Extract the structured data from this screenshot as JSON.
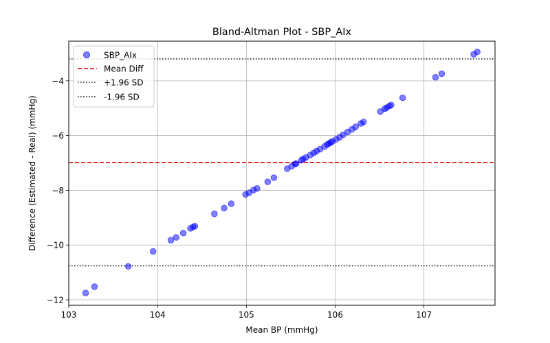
{
  "chart_data": {
    "type": "scatter",
    "title": "Bland-Altman Plot - SBP_AIx",
    "xlabel": "Mean BP (mmHg)",
    "ylabel": "Difference (Estimated - Real) (mmHg)",
    "xlim": [
      103.0,
      107.8
    ],
    "ylim": [
      -12.2,
      -2.55
    ],
    "xticks": [
      103,
      104,
      105,
      106,
      107
    ],
    "yticks": [
      -12,
      -10,
      -8,
      -6,
      -4
    ],
    "grid": true,
    "legend_position": "top-left",
    "colors": {
      "points": "#0000ff",
      "mean_line": "#e00000",
      "sd_lines": "#000000",
      "grid": "#b0b0b0"
    },
    "series": [
      {
        "name": "SBP_AIx",
        "kind": "scatter",
        "points": [
          [
            103.19,
            -11.75
          ],
          [
            103.29,
            -11.52
          ],
          [
            103.67,
            -10.78
          ],
          [
            103.95,
            -10.23
          ],
          [
            104.15,
            -9.82
          ],
          [
            104.21,
            -9.72
          ],
          [
            104.29,
            -9.56
          ],
          [
            104.37,
            -9.39
          ],
          [
            104.4,
            -9.34
          ],
          [
            104.42,
            -9.31
          ],
          [
            104.64,
            -8.86
          ],
          [
            104.75,
            -8.65
          ],
          [
            104.83,
            -8.49
          ],
          [
            104.99,
            -8.15
          ],
          [
            105.03,
            -8.09
          ],
          [
            105.08,
            -7.99
          ],
          [
            105.12,
            -7.93
          ],
          [
            105.24,
            -7.69
          ],
          [
            105.31,
            -7.54
          ],
          [
            105.46,
            -7.21
          ],
          [
            105.51,
            -7.12
          ],
          [
            105.55,
            -7.04
          ],
          [
            105.56,
            -7.02
          ],
          [
            105.62,
            -6.9
          ],
          [
            105.64,
            -6.86
          ],
          [
            105.67,
            -6.8
          ],
          [
            105.72,
            -6.71
          ],
          [
            105.76,
            -6.63
          ],
          [
            105.79,
            -6.57
          ],
          [
            105.83,
            -6.5
          ],
          [
            105.88,
            -6.4
          ],
          [
            105.91,
            -6.33
          ],
          [
            105.93,
            -6.29
          ],
          [
            105.95,
            -6.25
          ],
          [
            105.97,
            -6.21
          ],
          [
            106.01,
            -6.14
          ],
          [
            106.05,
            -6.06
          ],
          [
            106.09,
            -5.97
          ],
          [
            106.14,
            -5.87
          ],
          [
            106.19,
            -5.77
          ],
          [
            106.23,
            -5.68
          ],
          [
            106.29,
            -5.56
          ],
          [
            106.32,
            -5.5
          ],
          [
            106.51,
            -5.12
          ],
          [
            106.56,
            -5.02
          ],
          [
            106.58,
            -4.98
          ],
          [
            106.61,
            -4.92
          ],
          [
            106.63,
            -4.88
          ],
          [
            106.76,
            -4.62
          ],
          [
            107.13,
            -3.87
          ],
          [
            107.2,
            -3.74
          ],
          [
            107.56,
            -3.03
          ],
          [
            107.6,
            -2.94
          ]
        ]
      },
      {
        "name": "Mean Diff",
        "kind": "hline",
        "y": -6.98,
        "style": "dashed"
      },
      {
        "name": "+1.96 SD",
        "kind": "hline",
        "y": -3.2,
        "style": "dotted"
      },
      {
        "name": "-1.96 SD",
        "kind": "hline",
        "y": -10.76,
        "style": "dotted"
      }
    ]
  }
}
